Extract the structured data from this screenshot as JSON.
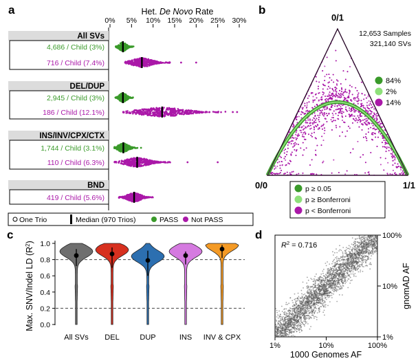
{
  "panels": {
    "a": "a",
    "b": "b",
    "c": "c",
    "d": "d"
  },
  "colors": {
    "pass_green": "#3a9a2a",
    "light_green": "#8ee07a",
    "magenta": "#aa18a8",
    "gray_violin": "#6e6e6e",
    "red_violin": "#d7301f",
    "blue_violin": "#2c6fb0",
    "pink_violin": "#d57ae0",
    "orange_violin": "#f49a25",
    "header_gray": "#dcdcdc"
  },
  "chart_data": [
    {
      "id": "a",
      "type": "scatter",
      "title": "Het. De Novo Rate",
      "title_prefix": "Het. ",
      "title_italic": "De Novo",
      "title_suffix": " Rate",
      "xlim": [
        0,
        30
      ],
      "xticks": [
        "0%",
        "5%",
        "10%",
        "15%",
        "20%",
        "25%",
        "30%"
      ],
      "xtick_values": [
        0,
        5,
        10,
        15,
        20,
        25,
        30
      ],
      "groups": [
        {
          "name": "All SVs",
          "rows": [
            {
              "label": "4,686 / Child (3%)",
              "status": "PASS",
              "median": 3.0,
              "spread": [
                1.3,
                5.5
              ]
            },
            {
              "label": "716 / Child (7.4%)",
              "status": "Not PASS",
              "median": 7.4,
              "spread": [
                3.5,
                14.0
              ],
              "outliers": [
                16.5,
                20.0
              ]
            }
          ]
        },
        {
          "name": "DEL/DUP",
          "rows": [
            {
              "label": "2,945 / Child (3%)",
              "status": "PASS",
              "median": 3.0,
              "spread": [
                1.2,
                5.5
              ]
            },
            {
              "label": "186 / Child (12.1%)",
              "status": "Not PASS",
              "median": 12.1,
              "spread": [
                3.0,
                27.0
              ],
              "outliers": [
                28.5,
                29.5
              ]
            }
          ]
        },
        {
          "name": "INS/INV/CPX/CTX",
          "rows": [
            {
              "label": "1,744 / Child (3.1%)",
              "status": "PASS",
              "median": 3.1,
              "spread": [
                1.0,
                6.5
              ],
              "outliers": [
                7.2
              ]
            },
            {
              "label": "110 / Child (6.3%)",
              "status": "Not PASS",
              "median": 6.3,
              "spread": [
                1.0,
                14.0
              ],
              "outliers": [
                18.0,
                25.0
              ]
            }
          ]
        },
        {
          "name": "BND",
          "rows": [
            {
              "label": "419 / Child (5.6%)",
              "status": "Not PASS",
              "median": 5.6,
              "spread": [
                2.0,
                10.0
              ]
            }
          ]
        }
      ],
      "legend": [
        {
          "label": "One Trio",
          "marker": "open-circle"
        },
        {
          "label": "Median (970 Trios)",
          "marker": "bar"
        },
        {
          "label": "PASS",
          "marker": "green-dot"
        },
        {
          "label": "Not PASS",
          "marker": "magenta-dot"
        }
      ]
    },
    {
      "id": "b",
      "type": "scatter",
      "vertex_top": "0/1",
      "vertex_left": "0/0",
      "vertex_right": "1/1",
      "info": [
        "12,653 Samples",
        "321,140 SVs"
      ],
      "categories": [
        {
          "label": "p ≥ 0.05",
          "percent": "84%",
          "color": "#3a9a2a"
        },
        {
          "label": "p ≥ Bonferroni",
          "percent": "2%",
          "color": "#8ee07a"
        },
        {
          "label": "p < Bonferroni",
          "percent": "14%",
          "color": "#aa18a8"
        }
      ]
    },
    {
      "id": "c",
      "type": "violin",
      "ylabel": "Max. SNV/Indel LD (R²)",
      "ylabel_main": "Max. SNV/Indel LD (R",
      "ylabel_sup": "2",
      "ylabel_end": ")",
      "ylim": [
        0,
        1
      ],
      "yticks": [
        "0.0",
        "0.2",
        "0.4",
        "0.6",
        "0.8",
        "1.0"
      ],
      "ytick_values": [
        0,
        0.2,
        0.4,
        0.6,
        0.8,
        1.0
      ],
      "dashed_lines": [
        0.2,
        0.8
      ],
      "categories": [
        "All SVs",
        "DEL",
        "DUP",
        "INS",
        "INV & CPX"
      ],
      "medians": [
        0.85,
        0.87,
        0.79,
        0.85,
        0.93
      ],
      "iqr": [
        [
          0.72,
          0.93
        ],
        [
          0.7,
          0.95
        ],
        [
          0.6,
          0.91
        ],
        [
          0.74,
          0.9
        ],
        [
          0.82,
          0.98
        ]
      ]
    },
    {
      "id": "d",
      "type": "scatter",
      "xlabel": "1000 Genomes AF",
      "ylabel": "gnomAD AF",
      "r2_label": "R",
      "r2_sup": "2",
      "r2_value": " = 0.716",
      "xticks": [
        "1%",
        "10%",
        "100%"
      ],
      "yticks": [
        "100%",
        "10%",
        "1%"
      ],
      "xlim": [
        0.01,
        1
      ],
      "ylim": [
        0.01,
        1
      ],
      "scale": "log"
    }
  ]
}
